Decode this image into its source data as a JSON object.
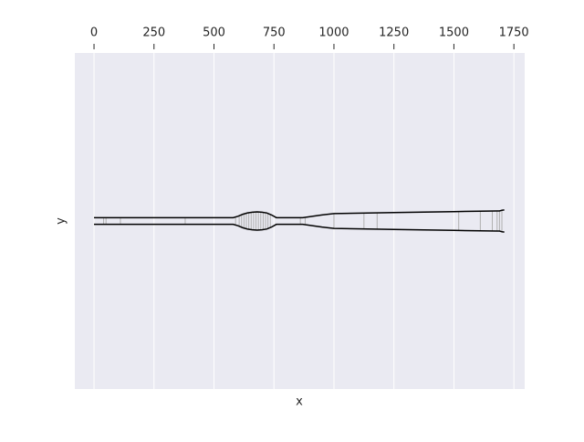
{
  "chart_data": {
    "type": "line",
    "x_label": "x",
    "y_label": "y",
    "x": [
      0,
      580,
      600,
      620,
      640,
      660,
      680,
      700,
      720,
      740,
      760,
      870,
      900,
      950,
      1000,
      1250,
      1500,
      1680,
      1690,
      1700,
      1710
    ],
    "series": [
      {
        "color": "#000000",
        "values": [
          1.0,
          1.0,
          1.4,
          2.0,
          2.4,
          2.6,
          2.7,
          2.6,
          2.4,
          1.8,
          1.0,
          1.0,
          1.3,
          1.8,
          2.2,
          2.5,
          2.8,
          3.0,
          3.0,
          3.2,
          3.3
        ]
      },
      {
        "color": "#000000",
        "values": [
          -1.0,
          -1.0,
          -1.4,
          -2.0,
          -2.4,
          -2.6,
          -2.7,
          -2.6,
          -2.4,
          -1.8,
          -1.0,
          -1.0,
          -1.3,
          -1.8,
          -2.2,
          -2.5,
          -2.8,
          -3.0,
          -3.0,
          -3.2,
          -3.3
        ]
      }
    ],
    "stations": [
      40,
      50,
      110,
      380,
      590,
      605,
      615,
      625,
      635,
      645,
      655,
      665,
      675,
      685,
      695,
      705,
      715,
      725,
      735,
      860,
      880,
      1000,
      1125,
      1180,
      1520,
      1610,
      1660,
      1680,
      1690,
      1700
    ],
    "station_color": "#b0b0b0",
    "xlim": [
      -80,
      1795
    ],
    "ylim": [
      -50,
      50
    ],
    "xticks": [
      0,
      250,
      500,
      750,
      1000,
      1250,
      1500,
      1750
    ],
    "x_axis_position": "top",
    "grid": true,
    "background": "#eaeaf2"
  }
}
